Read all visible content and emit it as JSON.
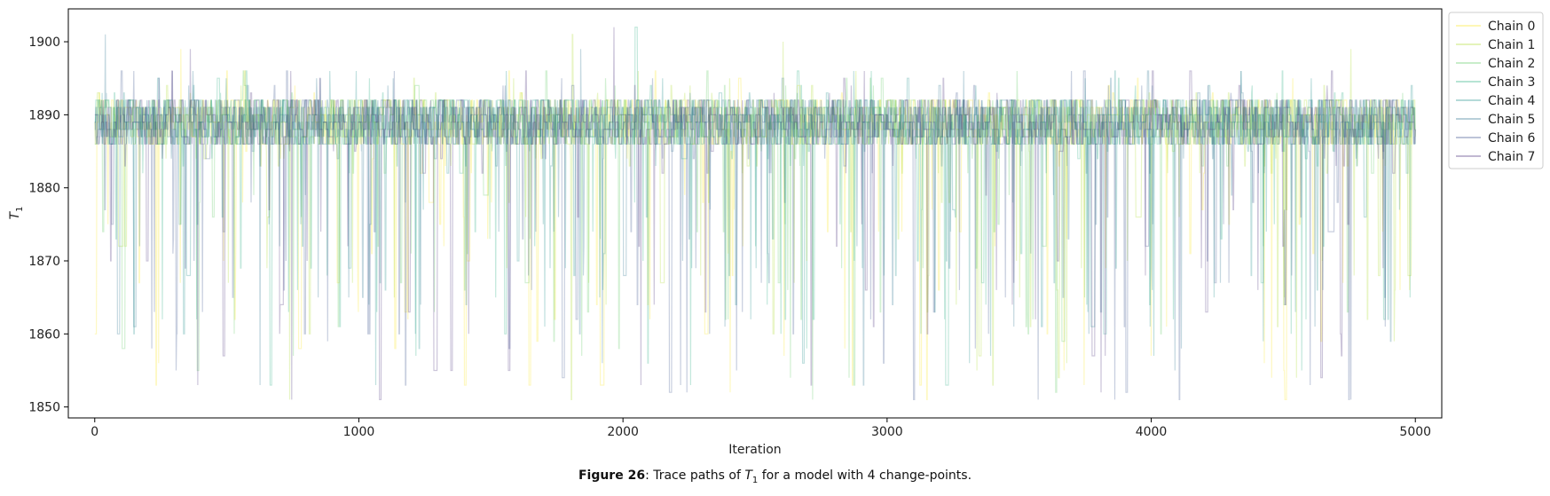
{
  "chart_data": {
    "type": "line",
    "xlabel": "Iteration",
    "ylabel_main": "T",
    "ylabel_sub": "1",
    "xlim": [
      -100,
      5100
    ],
    "ylim": [
      1848.5,
      1904.5
    ],
    "xticks": [
      0,
      1000,
      2000,
      3000,
      4000,
      5000
    ],
    "xtick_labels": [
      "0",
      "1000",
      "2000",
      "3000",
      "4000",
      "5000"
    ],
    "yticks": [
      1850,
      1860,
      1870,
      1880,
      1890,
      1900
    ],
    "ytick_labels": [
      "1850",
      "1860",
      "1870",
      "1880",
      "1890",
      "1900"
    ],
    "n_iterations": 5000,
    "typical_range": [
      1886,
      1892
    ],
    "occasional_range": [
      1882,
      1896
    ],
    "min_value": 1851,
    "max_value": 1902,
    "legend_position": "outside upper right",
    "grid": false,
    "series": [
      {
        "name": "Chain 0",
        "color": "#fde725"
      },
      {
        "name": "Chain 1",
        "color": "#addc30"
      },
      {
        "name": "Chain 2",
        "color": "#5ec962"
      },
      {
        "name": "Chain 3",
        "color": "#28ae80"
      },
      {
        "name": "Chain 4",
        "color": "#21918c"
      },
      {
        "name": "Chain 5",
        "color": "#2c728e"
      },
      {
        "name": "Chain 6",
        "color": "#3b528b"
      },
      {
        "name": "Chain 7",
        "color": "#472d7b"
      }
    ]
  },
  "caption": {
    "label": "Figure 26",
    "text_before": ": Trace paths of ",
    "symbol": "T",
    "symbol_sub": "1",
    "text_after": " for a model with 4 change-points."
  }
}
